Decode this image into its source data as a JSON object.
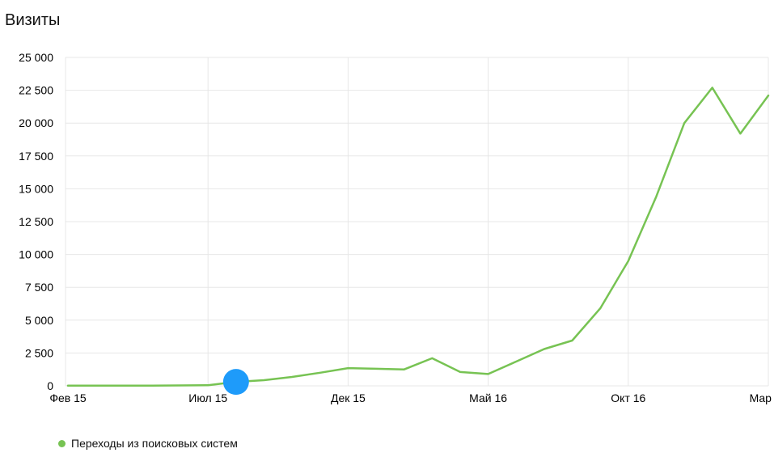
{
  "title": "Визиты",
  "colors": {
    "grid": "#e7e7e7",
    "axis_text": "#000000",
    "background": "#ffffff"
  },
  "legend": {
    "items": [
      {
        "label": "Переходы из поисковых систем",
        "color": "#77c353"
      }
    ]
  },
  "chart_data": {
    "type": "line",
    "title": "Визиты",
    "grid": true,
    "legend_position": "bottom",
    "x_axis": {
      "points_count": 26,
      "tick_labels": [
        "Фев 15",
        "Июл 15",
        "Дек 15",
        "Май 16",
        "Окт 16",
        "Мар 17"
      ],
      "tick_indices": [
        0,
        5,
        10,
        15,
        20,
        25
      ]
    },
    "y_axis": {
      "min": 0,
      "max": 25000,
      "step": 2500,
      "tick_labels": [
        "0",
        "2 500",
        "5 000",
        "7 500",
        "10 000",
        "12 500",
        "15 000",
        "17 500",
        "20 000",
        "22 500",
        "25 000"
      ]
    },
    "series": [
      {
        "name": "Переходы из поисковых систем",
        "color": "#77c353",
        "values": [
          10,
          10,
          15,
          20,
          30,
          50,
          300,
          430,
          680,
          1000,
          1350,
          1300,
          1250,
          2100,
          1050,
          900,
          1850,
          2800,
          3450,
          5900,
          9500,
          14400,
          20000,
          22700,
          19200,
          22100
        ]
      }
    ],
    "highlight_marker": {
      "series": 0,
      "index": 6,
      "value": 300,
      "color": "#1e9bfa",
      "radius": 16
    }
  }
}
